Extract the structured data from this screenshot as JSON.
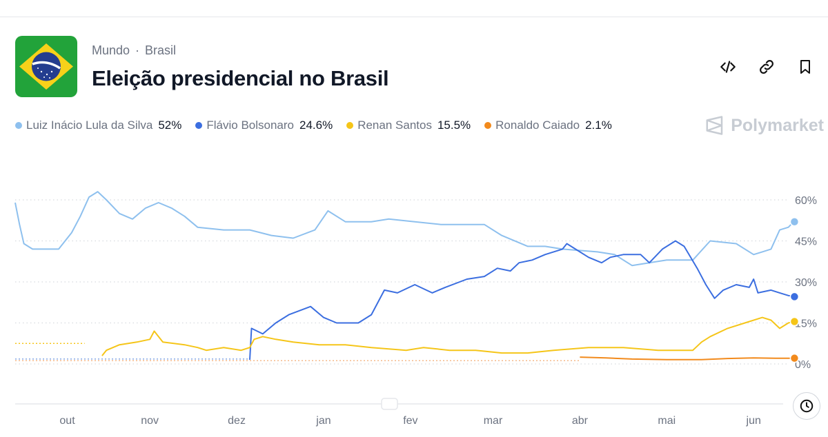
{
  "header": {
    "breadcrumb": [
      "Mundo",
      "Brasil"
    ],
    "title": "Eleição presidencial no Brasil",
    "brand": "Polymarket"
  },
  "actions": [
    {
      "name": "embed-code-icon"
    },
    {
      "name": "link-icon"
    },
    {
      "name": "bookmark-icon"
    }
  ],
  "legend": [
    {
      "name": "Luiz Inácio Lula da Silva",
      "value": "52%",
      "color": "#8ec0ee"
    },
    {
      "name": "Flávio Bolsonaro",
      "value": "24.6%",
      "color": "#3b6ee0"
    },
    {
      "name": "Renan Santos",
      "value": "15.5%",
      "color": "#f5c518"
    },
    {
      "name": "Ronaldo Caiado",
      "value": "2.1%",
      "color": "#f28a1c"
    }
  ],
  "chart_data": {
    "type": "line",
    "y_ticks": [
      "60%",
      "45%",
      "30%",
      "15%",
      "0%"
    ],
    "y_tick_values": [
      60,
      45,
      30,
      15,
      0
    ],
    "ylim": [
      0,
      60
    ],
    "x_ticks": [
      "out",
      "nov",
      "dez",
      "jan",
      "fev",
      "mar",
      "abr",
      "mai",
      "jun"
    ],
    "x_tick_values": [
      0.6,
      1.55,
      2.55,
      3.55,
      4.55,
      5.5,
      6.5,
      7.5,
      8.5
    ],
    "x_domain": [
      0,
      8.8
    ],
    "grid": "dotted",
    "series": [
      {
        "name": "Luiz Inácio Lula da Silva",
        "color": "#8ec0ee",
        "points": [
          [
            0,
            59
          ],
          [
            0.05,
            51
          ],
          [
            0.1,
            44
          ],
          [
            0.2,
            42
          ],
          [
            0.5,
            42
          ],
          [
            0.65,
            48
          ],
          [
            0.75,
            54
          ],
          [
            0.85,
            61
          ],
          [
            0.95,
            63
          ],
          [
            1.05,
            60
          ],
          [
            1.2,
            55
          ],
          [
            1.35,
            53
          ],
          [
            1.5,
            57
          ],
          [
            1.65,
            59
          ],
          [
            1.8,
            57
          ],
          [
            1.95,
            54
          ],
          [
            2.1,
            50
          ],
          [
            2.4,
            49
          ],
          [
            2.7,
            49
          ],
          [
            2.95,
            47
          ],
          [
            3.2,
            46
          ],
          [
            3.45,
            49
          ],
          [
            3.6,
            56
          ],
          [
            3.8,
            52
          ],
          [
            4.1,
            52
          ],
          [
            4.3,
            53
          ],
          [
            4.6,
            52
          ],
          [
            4.9,
            51
          ],
          [
            5.2,
            51
          ],
          [
            5.4,
            51
          ],
          [
            5.6,
            47
          ],
          [
            5.9,
            43
          ],
          [
            6.1,
            43
          ],
          [
            6.3,
            42
          ],
          [
            6.7,
            41
          ],
          [
            6.9,
            40
          ],
          [
            7.1,
            36
          ],
          [
            7.3,
            37
          ],
          [
            7.5,
            38
          ],
          [
            7.8,
            38
          ],
          [
            8.0,
            45
          ],
          [
            8.3,
            44
          ],
          [
            8.5,
            40
          ],
          [
            8.6,
            41
          ],
          [
            8.7,
            42
          ],
          [
            8.8,
            49
          ],
          [
            8.9,
            50
          ],
          [
            8.93,
            51
          ],
          [
            8.97,
            52
          ]
        ]
      },
      {
        "name": "Flávio Bolsonaro",
        "color": "#3b6ee0",
        "points": [
          [
            2.7,
            1.5
          ],
          [
            2.72,
            13
          ],
          [
            2.85,
            11
          ],
          [
            3.0,
            15
          ],
          [
            3.15,
            18
          ],
          [
            3.4,
            21
          ],
          [
            3.55,
            17
          ],
          [
            3.7,
            15
          ],
          [
            3.95,
            15
          ],
          [
            4.1,
            18
          ],
          [
            4.25,
            27
          ],
          [
            4.4,
            26
          ],
          [
            4.6,
            29
          ],
          [
            4.8,
            26
          ],
          [
            4.95,
            28
          ],
          [
            5.2,
            31
          ],
          [
            5.4,
            32
          ],
          [
            5.55,
            35
          ],
          [
            5.7,
            34
          ],
          [
            5.8,
            37
          ],
          [
            5.95,
            38
          ],
          [
            6.1,
            40
          ],
          [
            6.3,
            42
          ],
          [
            6.35,
            44
          ],
          [
            6.5,
            41
          ],
          [
            6.6,
            39
          ],
          [
            6.75,
            37
          ],
          [
            6.85,
            39
          ],
          [
            7.0,
            40
          ],
          [
            7.2,
            40
          ],
          [
            7.3,
            37
          ],
          [
            7.45,
            42
          ],
          [
            7.6,
            45
          ],
          [
            7.7,
            43
          ],
          [
            7.85,
            35
          ],
          [
            7.95,
            29
          ],
          [
            8.05,
            24
          ],
          [
            8.15,
            27
          ],
          [
            8.3,
            29
          ],
          [
            8.45,
            28
          ],
          [
            8.5,
            31
          ],
          [
            8.55,
            26
          ],
          [
            8.7,
            27
          ],
          [
            8.8,
            26
          ],
          [
            8.9,
            25
          ],
          [
            8.97,
            24.6
          ]
        ]
      },
      {
        "name": "Renan Santos",
        "color": "#f5c518",
        "points": [
          [
            1.0,
            3
          ],
          [
            1.05,
            5
          ],
          [
            1.2,
            7
          ],
          [
            1.4,
            8
          ],
          [
            1.55,
            9
          ],
          [
            1.6,
            12
          ],
          [
            1.7,
            8
          ],
          [
            1.95,
            7
          ],
          [
            2.1,
            6
          ],
          [
            2.2,
            5
          ],
          [
            2.4,
            6
          ],
          [
            2.6,
            5
          ],
          [
            2.7,
            6
          ],
          [
            2.75,
            9
          ],
          [
            2.85,
            10
          ],
          [
            3.0,
            9
          ],
          [
            3.2,
            8
          ],
          [
            3.5,
            7
          ],
          [
            3.8,
            7
          ],
          [
            4.1,
            6
          ],
          [
            4.5,
            5
          ],
          [
            4.7,
            6
          ],
          [
            5.0,
            5
          ],
          [
            5.3,
            5
          ],
          [
            5.6,
            4
          ],
          [
            5.9,
            4
          ],
          [
            6.2,
            5
          ],
          [
            6.6,
            6
          ],
          [
            7.0,
            6
          ],
          [
            7.4,
            5
          ],
          [
            7.8,
            5
          ],
          [
            7.9,
            8
          ],
          [
            8.0,
            10
          ],
          [
            8.2,
            13
          ],
          [
            8.4,
            15
          ],
          [
            8.6,
            17
          ],
          [
            8.7,
            16
          ],
          [
            8.8,
            13
          ],
          [
            8.9,
            15
          ],
          [
            8.97,
            15.5
          ]
        ]
      },
      {
        "name": "Ronaldo Caiado",
        "color": "#f28a1c",
        "points": [
          [
            6.5,
            2.5
          ],
          [
            6.8,
            2.2
          ],
          [
            7.1,
            1.8
          ],
          [
            7.5,
            1.6
          ],
          [
            7.9,
            1.6
          ],
          [
            8.2,
            2.0
          ],
          [
            8.5,
            2.2
          ],
          [
            8.75,
            2.1
          ],
          [
            8.97,
            2.1
          ]
        ]
      }
    ]
  }
}
